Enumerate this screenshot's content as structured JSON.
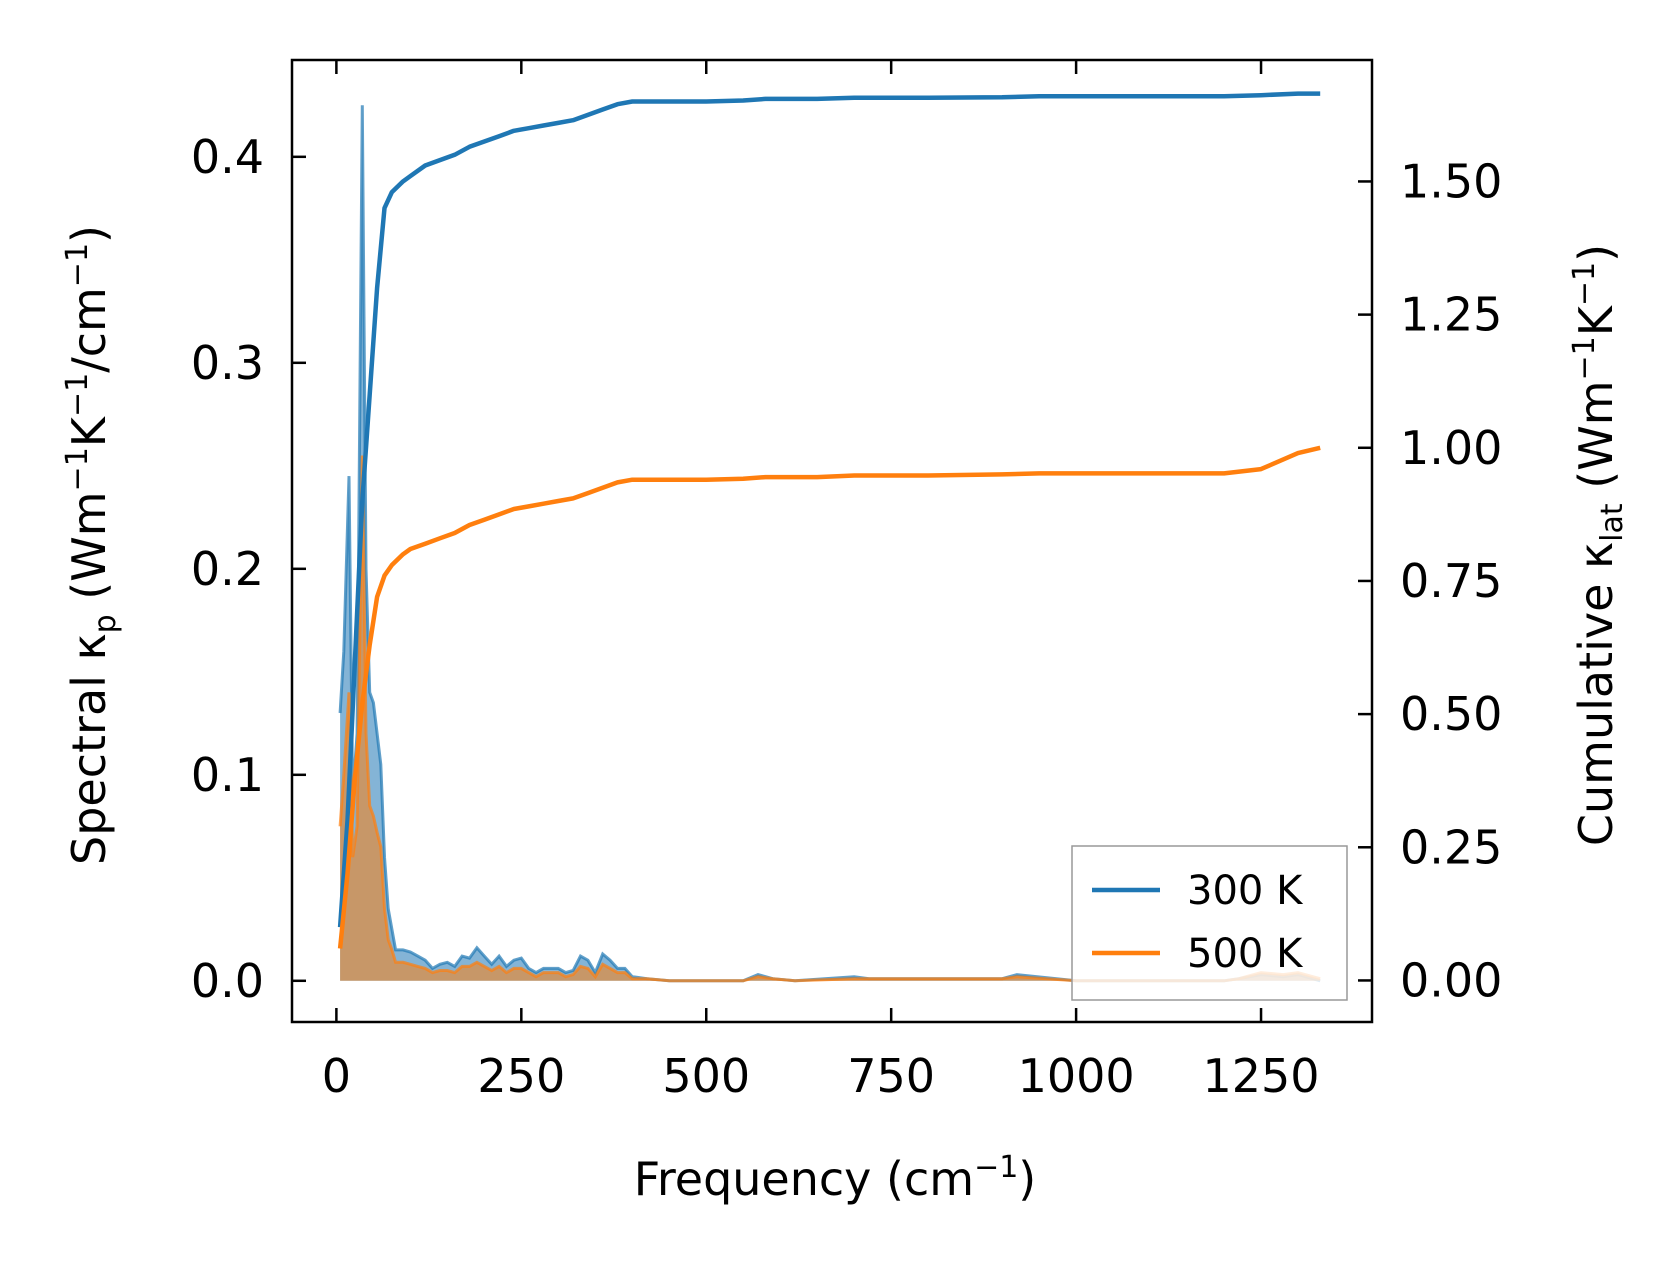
{
  "chart_data": {
    "type": "line",
    "xlabel": "Frequency (cm⁻¹)",
    "ylabel_left": "Spectral κ_p (Wm⁻¹K⁻¹/cm⁻¹)",
    "ylabel_right": "Cumulative κ_lat (Wm⁻¹K⁻¹)",
    "xlim": [
      -60,
      1400
    ],
    "ylim_left": [
      -0.02,
      0.447
    ],
    "ylim_right": [
      -0.078,
      1.728
    ],
    "x_ticks": [
      0,
      250,
      500,
      750,
      1000,
      1250
    ],
    "y_left_ticks": [
      0.0,
      0.1,
      0.2,
      0.3,
      0.4
    ],
    "y_left_tick_labels": [
      "0.0",
      "0.1",
      "0.2",
      "0.3",
      "0.4"
    ],
    "y_right_ticks": [
      0.0,
      0.25,
      0.5,
      0.75,
      1.0,
      1.25,
      1.5
    ],
    "y_right_tick_labels": [
      "0.00",
      "0.25",
      "0.50",
      "0.75",
      "1.00",
      "1.25",
      "1.50"
    ],
    "legend": {
      "placement": "lower-right",
      "entries": [
        "300 K",
        "500 K"
      ]
    },
    "grid": false,
    "colors": {
      "300K": "#1f77b4",
      "500K": "#ff7f0e",
      "fill_overlap": "#b08060"
    },
    "spectral": [
      {
        "name": "300 K",
        "axis": "left",
        "x": [
          5,
          10,
          17,
          22,
          28,
          35,
          40,
          45,
          50,
          55,
          60,
          65,
          70,
          75,
          80,
          90,
          100,
          110,
          120,
          130,
          140,
          150,
          160,
          170,
          180,
          190,
          200,
          210,
          220,
          230,
          240,
          250,
          260,
          270,
          280,
          290,
          300,
          310,
          320,
          330,
          340,
          350,
          360,
          370,
          380,
          390,
          400,
          420,
          450,
          500,
          550,
          570,
          590,
          620,
          700,
          720,
          900,
          920,
          1000,
          1200,
          1220,
          1250,
          1280,
          1300,
          1330
        ],
        "y": [
          0.13,
          0.16,
          0.245,
          0.09,
          0.12,
          0.425,
          0.2,
          0.14,
          0.135,
          0.12,
          0.105,
          0.06,
          0.035,
          0.025,
          0.015,
          0.015,
          0.014,
          0.012,
          0.01,
          0.006,
          0.008,
          0.009,
          0.007,
          0.012,
          0.011,
          0.016,
          0.012,
          0.008,
          0.012,
          0.007,
          0.01,
          0.011,
          0.006,
          0.004,
          0.006,
          0.006,
          0.006,
          0.004,
          0.005,
          0.012,
          0.01,
          0.004,
          0.013,
          0.01,
          0.006,
          0.006,
          0.002,
          0.001,
          0.0,
          0.0,
          0.0,
          0.003,
          0.001,
          0.0,
          0.002,
          0.001,
          0.001,
          0.003,
          0.0,
          0.0,
          0.001,
          0.003,
          0.002,
          0.003,
          0.0
        ]
      },
      {
        "name": "500 K",
        "axis": "left",
        "x": [
          5,
          10,
          17,
          22,
          28,
          35,
          40,
          45,
          50,
          55,
          60,
          65,
          70,
          75,
          80,
          90,
          100,
          110,
          120,
          130,
          140,
          150,
          160,
          170,
          180,
          190,
          200,
          210,
          220,
          230,
          240,
          250,
          260,
          270,
          280,
          290,
          300,
          310,
          320,
          330,
          340,
          350,
          360,
          370,
          380,
          390,
          400,
          420,
          450,
          500,
          550,
          570,
          590,
          620,
          700,
          720,
          900,
          920,
          1000,
          1200,
          1220,
          1250,
          1280,
          1300,
          1330
        ],
        "y": [
          0.075,
          0.1,
          0.14,
          0.06,
          0.075,
          0.255,
          0.12,
          0.085,
          0.08,
          0.072,
          0.065,
          0.035,
          0.02,
          0.015,
          0.009,
          0.009,
          0.008,
          0.007,
          0.006,
          0.004,
          0.005,
          0.005,
          0.004,
          0.007,
          0.007,
          0.009,
          0.007,
          0.005,
          0.007,
          0.004,
          0.006,
          0.006,
          0.004,
          0.002,
          0.004,
          0.004,
          0.004,
          0.002,
          0.003,
          0.007,
          0.006,
          0.002,
          0.008,
          0.006,
          0.004,
          0.004,
          0.001,
          0.001,
          0.0,
          0.0,
          0.0,
          0.002,
          0.001,
          0.0,
          0.001,
          0.001,
          0.001,
          0.002,
          0.0,
          0.0,
          0.001,
          0.004,
          0.003,
          0.004,
          0.001
        ]
      }
    ],
    "cumulative": [
      {
        "name": "300 K",
        "axis": "right",
        "x": [
          5,
          15,
          25,
          35,
          45,
          55,
          65,
          75,
          90,
          100,
          120,
          140,
          160,
          180,
          200,
          220,
          240,
          260,
          280,
          300,
          320,
          340,
          360,
          380,
          400,
          420,
          450,
          500,
          550,
          580,
          600,
          650,
          700,
          750,
          800,
          900,
          950,
          1000,
          1100,
          1200,
          1250,
          1300,
          1330
        ],
        "y": [
          0.1,
          0.3,
          0.6,
          0.9,
          1.1,
          1.3,
          1.45,
          1.48,
          1.5,
          1.51,
          1.53,
          1.54,
          1.55,
          1.565,
          1.575,
          1.585,
          1.595,
          1.6,
          1.605,
          1.61,
          1.615,
          1.625,
          1.635,
          1.645,
          1.65,
          1.65,
          1.65,
          1.65,
          1.652,
          1.655,
          1.655,
          1.655,
          1.657,
          1.657,
          1.657,
          1.658,
          1.66,
          1.66,
          1.66,
          1.66,
          1.662,
          1.665,
          1.665
        ]
      },
      {
        "name": "500 K",
        "axis": "right",
        "x": [
          5,
          15,
          25,
          35,
          45,
          55,
          65,
          75,
          90,
          100,
          120,
          140,
          160,
          180,
          200,
          220,
          240,
          260,
          280,
          300,
          320,
          340,
          360,
          380,
          400,
          420,
          450,
          500,
          550,
          580,
          600,
          650,
          700,
          750,
          800,
          900,
          950,
          1000,
          1100,
          1200,
          1250,
          1300,
          1330
        ],
        "y": [
          0.06,
          0.2,
          0.38,
          0.52,
          0.63,
          0.72,
          0.76,
          0.78,
          0.8,
          0.81,
          0.82,
          0.83,
          0.84,
          0.855,
          0.865,
          0.875,
          0.885,
          0.89,
          0.895,
          0.9,
          0.905,
          0.915,
          0.925,
          0.935,
          0.94,
          0.94,
          0.94,
          0.94,
          0.942,
          0.945,
          0.945,
          0.945,
          0.948,
          0.948,
          0.948,
          0.95,
          0.952,
          0.952,
          0.952,
          0.952,
          0.96,
          0.99,
          1.0
        ]
      }
    ]
  }
}
